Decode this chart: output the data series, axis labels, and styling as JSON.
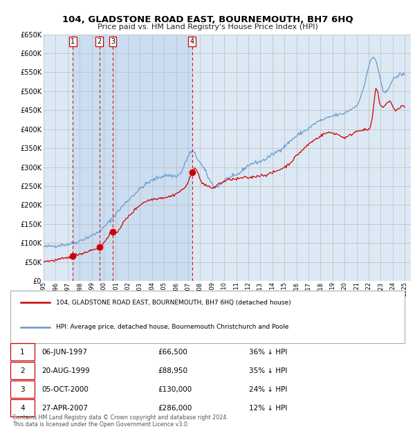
{
  "title": "104, GLADSTONE ROAD EAST, BOURNEMOUTH, BH7 6HQ",
  "subtitle": "Price paid vs. HM Land Registry's House Price Index (HPI)",
  "sales": [
    {
      "date_yr": 1997.4384,
      "price": 66500,
      "label": "1"
    },
    {
      "date_yr": 1999.6356,
      "price": 88950,
      "label": "2"
    },
    {
      "date_yr": 2000.7589,
      "price": 130000,
      "label": "3"
    },
    {
      "date_yr": 2007.3233,
      "price": 286000,
      "label": "4"
    }
  ],
  "table_rows": [
    {
      "num": "1",
      "date": "06-JUN-1997",
      "price": "£66,500",
      "pct": "36% ↓ HPI"
    },
    {
      "num": "2",
      "date": "20-AUG-1999",
      "price": "£88,950",
      "pct": "35% ↓ HPI"
    },
    {
      "num": "3",
      "date": "05-OCT-2000",
      "price": "£130,000",
      "pct": "24% ↓ HPI"
    },
    {
      "num": "4",
      "date": "27-APR-2007",
      "price": "£286,000",
      "pct": "12% ↓ HPI"
    }
  ],
  "legend_line1": "104, GLADSTONE ROAD EAST, BOURNEMOUTH, BH7 6HQ (detached house)",
  "legend_line2": "HPI: Average price, detached house, Bournemouth Christchurch and Poole",
  "footer": "Contains HM Land Registry data © Crown copyright and database right 2024.\nThis data is licensed under the Open Government Licence v3.0.",
  "red_color": "#cc0000",
  "blue_color": "#6699cc",
  "bg_color": "#dce9f5",
  "shade_color": "#c5d9ee",
  "ylim": [
    0,
    650000
  ],
  "xlim": [
    1995.0,
    2025.5
  ],
  "yticks": [
    0,
    50000,
    100000,
    150000,
    200000,
    250000,
    300000,
    350000,
    400000,
    450000,
    500000,
    550000,
    600000,
    650000
  ],
  "xticks": [
    1995,
    1996,
    1997,
    1998,
    1999,
    2000,
    2001,
    2002,
    2003,
    2004,
    2005,
    2006,
    2007,
    2008,
    2009,
    2010,
    2011,
    2012,
    2013,
    2014,
    2015,
    2016,
    2017,
    2018,
    2019,
    2020,
    2021,
    2022,
    2023,
    2024,
    2025
  ],
  "hpi_anchors": [
    [
      1995.0,
      90000
    ],
    [
      1996.0,
      93000
    ],
    [
      1997.0,
      97000
    ],
    [
      1997.5,
      100000
    ],
    [
      1998.5,
      113000
    ],
    [
      1999.5,
      128000
    ],
    [
      2000.5,
      158000
    ],
    [
      2001.5,
      195000
    ],
    [
      2002.5,
      228000
    ],
    [
      2003.5,
      255000
    ],
    [
      2004.5,
      272000
    ],
    [
      2005.5,
      278000
    ],
    [
      2006.5,
      291000
    ],
    [
      2007.25,
      340000
    ],
    [
      2007.8,
      322000
    ],
    [
      2008.5,
      285000
    ],
    [
      2009.2,
      248000
    ],
    [
      2010.0,
      265000
    ],
    [
      2011.0,
      278000
    ],
    [
      2012.0,
      305000
    ],
    [
      2013.0,
      315000
    ],
    [
      2014.0,
      333000
    ],
    [
      2015.0,
      355000
    ],
    [
      2016.0,
      382000
    ],
    [
      2017.0,
      402000
    ],
    [
      2017.8,
      420000
    ],
    [
      2018.5,
      428000
    ],
    [
      2019.0,
      435000
    ],
    [
      2019.8,
      440000
    ],
    [
      2020.5,
      452000
    ],
    [
      2021.5,
      500000
    ],
    [
      2022.1,
      575000
    ],
    [
      2022.7,
      570000
    ],
    [
      2023.2,
      500000
    ],
    [
      2023.8,
      520000
    ],
    [
      2024.2,
      535000
    ],
    [
      2024.8,
      545000
    ],
    [
      2025.0,
      542000
    ]
  ],
  "pp_anchors": [
    [
      1995.0,
      52000
    ],
    [
      1995.5,
      53000
    ],
    [
      1996.0,
      55000
    ],
    [
      1996.5,
      58000
    ],
    [
      1997.2,
      63000
    ],
    [
      1997.4384,
      66500
    ],
    [
      1997.8,
      70000
    ],
    [
      1998.5,
      76000
    ],
    [
      1999.2,
      84000
    ],
    [
      1999.6356,
      88950
    ],
    [
      2000.0,
      100000
    ],
    [
      2000.7589,
      130000
    ],
    [
      2001.0,
      128000
    ],
    [
      2001.5,
      148000
    ],
    [
      2002.0,
      168000
    ],
    [
      2002.5,
      185000
    ],
    [
      2003.0,
      200000
    ],
    [
      2003.5,
      210000
    ],
    [
      2004.0,
      215000
    ],
    [
      2004.5,
      218000
    ],
    [
      2005.0,
      220000
    ],
    [
      2005.5,
      223000
    ],
    [
      2006.0,
      230000
    ],
    [
      2006.5,
      240000
    ],
    [
      2007.0,
      260000
    ],
    [
      2007.3233,
      286000
    ],
    [
      2007.55,
      300000
    ],
    [
      2007.8,
      285000
    ],
    [
      2008.0,
      268000
    ],
    [
      2008.5,
      252000
    ],
    [
      2009.0,
      245000
    ],
    [
      2009.5,
      255000
    ],
    [
      2010.0,
      262000
    ],
    [
      2010.5,
      268000
    ],
    [
      2011.0,
      268000
    ],
    [
      2011.5,
      272000
    ],
    [
      2012.0,
      272000
    ],
    [
      2012.5,
      275000
    ],
    [
      2013.0,
      278000
    ],
    [
      2013.5,
      280000
    ],
    [
      2014.0,
      285000
    ],
    [
      2014.5,
      292000
    ],
    [
      2015.0,
      300000
    ],
    [
      2015.5,
      312000
    ],
    [
      2016.0,
      330000
    ],
    [
      2016.5,
      345000
    ],
    [
      2017.0,
      360000
    ],
    [
      2017.5,
      372000
    ],
    [
      2018.0,
      382000
    ],
    [
      2018.5,
      390000
    ],
    [
      2019.0,
      390000
    ],
    [
      2019.5,
      385000
    ],
    [
      2020.0,
      378000
    ],
    [
      2020.5,
      385000
    ],
    [
      2021.0,
      395000
    ],
    [
      2021.5,
      398000
    ],
    [
      2022.0,
      400000
    ],
    [
      2022.3,
      430000
    ],
    [
      2022.6,
      505000
    ],
    [
      2022.9,
      470000
    ],
    [
      2023.2,
      460000
    ],
    [
      2023.5,
      468000
    ],
    [
      2023.8,
      472000
    ],
    [
      2024.0,
      458000
    ],
    [
      2024.5,
      455000
    ],
    [
      2025.0,
      458000
    ]
  ]
}
